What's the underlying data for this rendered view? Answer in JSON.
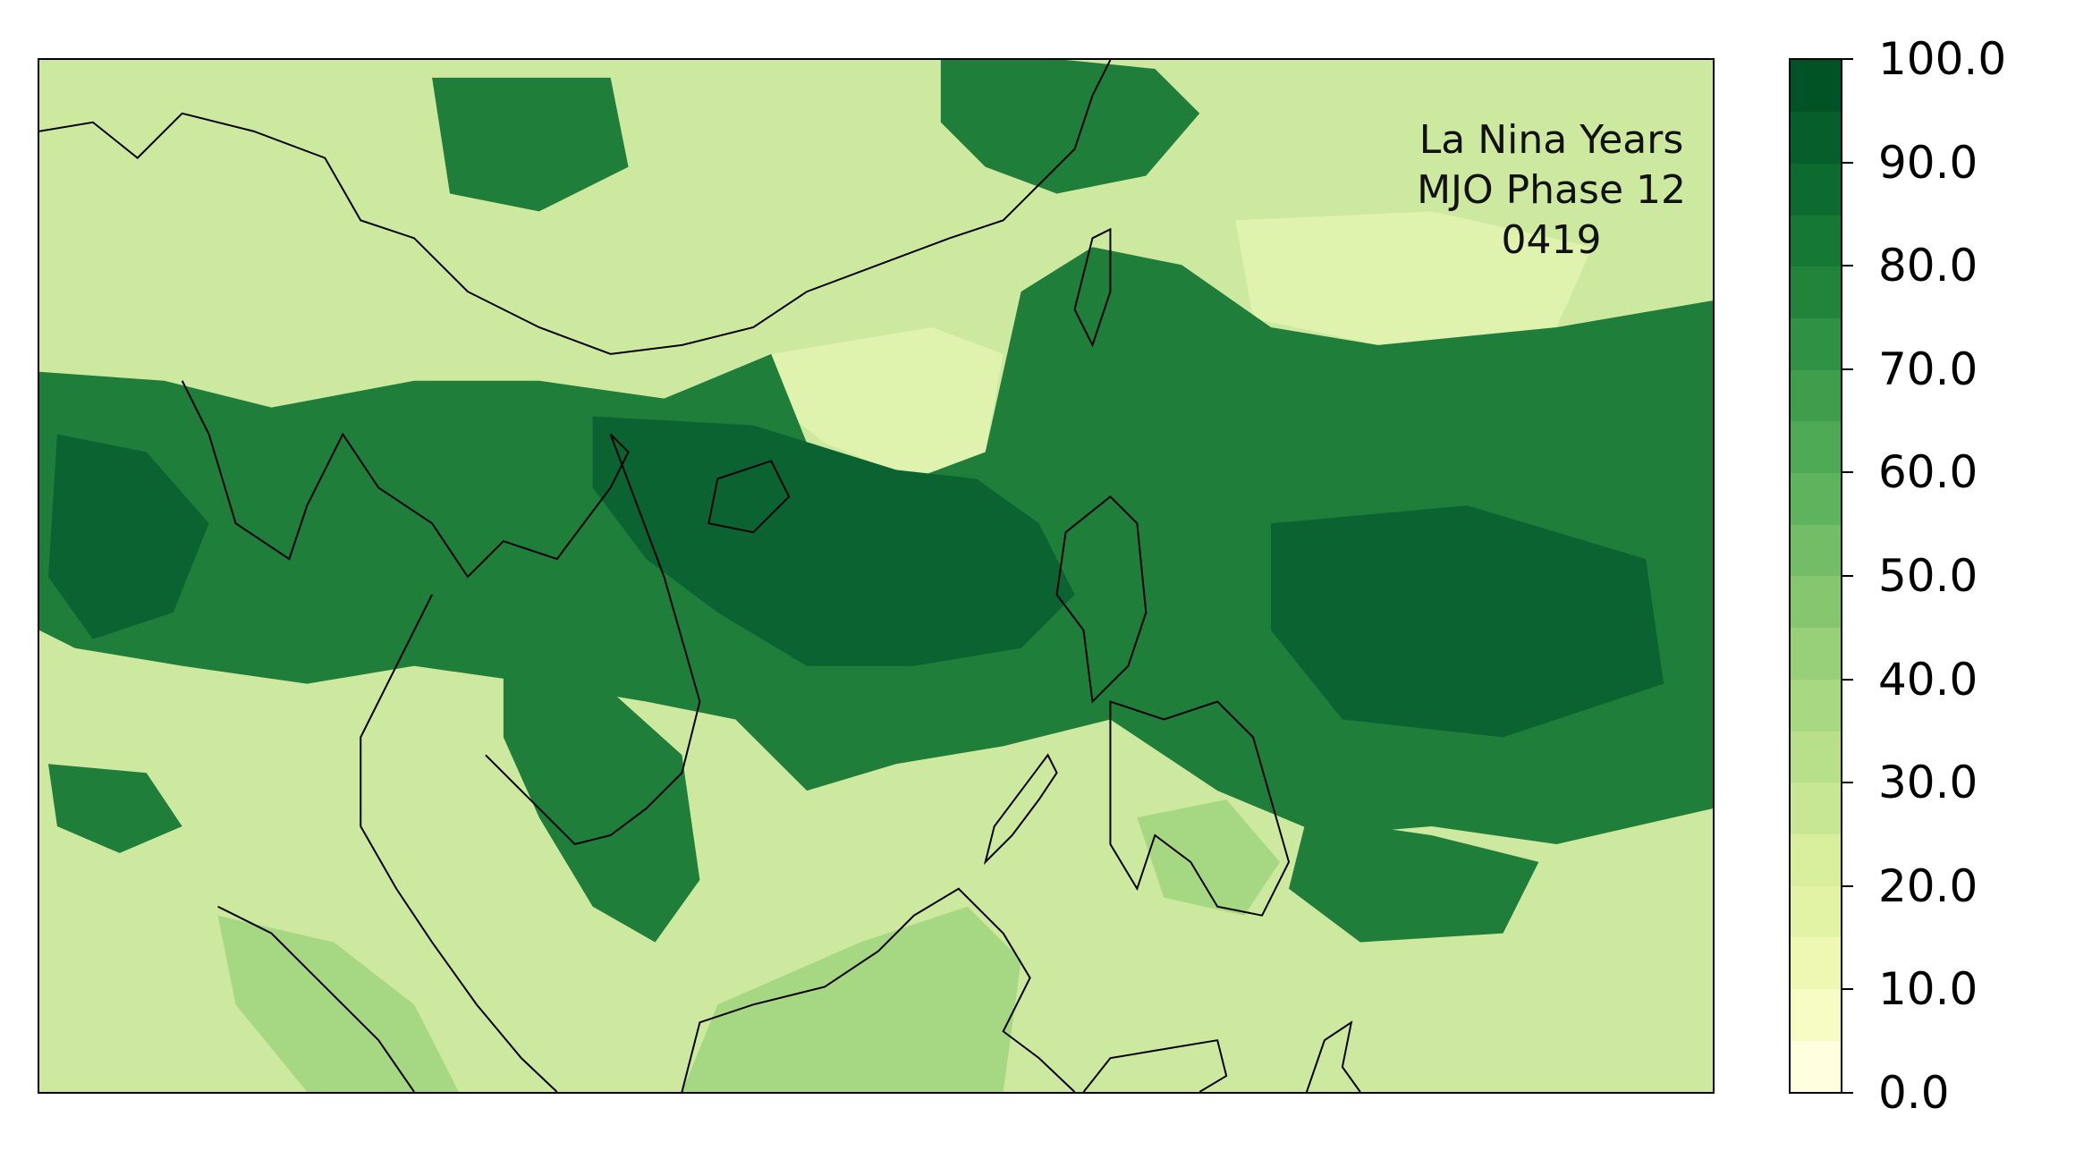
{
  "annotation": {
    "line1": "La Nina Years",
    "line2": "MJO Phase 12",
    "line3": "0419"
  },
  "colorbar": {
    "colormap": "YlGn",
    "min": 0,
    "max": 100,
    "levels": [
      0,
      5,
      10,
      15,
      20,
      25,
      30,
      35,
      40,
      45,
      50,
      55,
      60,
      65,
      70,
      75,
      80,
      85,
      90,
      95,
      100
    ],
    "colors": [
      "#ffffe0",
      "#f7fcc4",
      "#eef8b3",
      "#e3f3a6",
      "#d7ee9c",
      "#c8e794",
      "#b8e08b",
      "#a8d881",
      "#97d078",
      "#85c66f",
      "#72bd66",
      "#5fb35d",
      "#4ea955",
      "#3e9e4c",
      "#2f9143",
      "#22843b",
      "#167835",
      "#0d6b2f",
      "#065f2a",
      "#015325"
    ],
    "tick_labels": [
      "0.0",
      "10.0",
      "20.0",
      "30.0",
      "40.0",
      "50.0",
      "60.0",
      "70.0",
      "80.0",
      "90.0",
      "100.0"
    ],
    "tick_values": [
      0,
      10,
      20,
      30,
      40,
      50,
      60,
      70,
      80,
      90,
      100
    ]
  },
  "map": {
    "field_colors": {
      "background": "#cde9a0",
      "pale": "#dff2ae",
      "mid": "#a6d783",
      "high": "#1f7e3a",
      "highest": "#0a6330",
      "coast": "#000000"
    }
  }
}
